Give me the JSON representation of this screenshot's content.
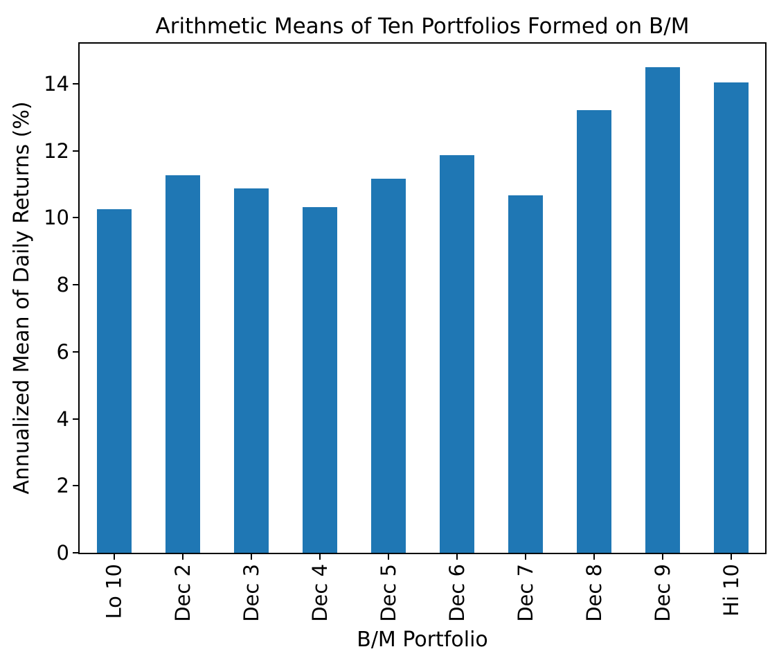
{
  "chart_data": {
    "type": "bar",
    "title": "Arithmetic Means of Ten Portfolios Formed on B/M",
    "xlabel": "B/M Portfolio",
    "ylabel": "Annualized Mean of Daily Returns (%)",
    "categories": [
      "Lo 10",
      "Dec 2",
      "Dec 3",
      "Dec 4",
      "Dec 5",
      "Dec 6",
      "Dec 7",
      "Dec 8",
      "Dec 9",
      "Hi 10"
    ],
    "values": [
      10.25,
      11.27,
      10.87,
      10.32,
      11.17,
      11.88,
      10.67,
      13.21,
      14.5,
      14.04
    ],
    "yticks": [
      0,
      2,
      4,
      6,
      8,
      10,
      12,
      14
    ],
    "ylim": [
      0,
      15.2
    ],
    "bar_color": "#1f77b4",
    "axis_color": "#000000",
    "text_color": "#000000",
    "background_color": "#ffffff",
    "grid": false,
    "legend": "none",
    "xtick_rotation_deg": 90
  }
}
